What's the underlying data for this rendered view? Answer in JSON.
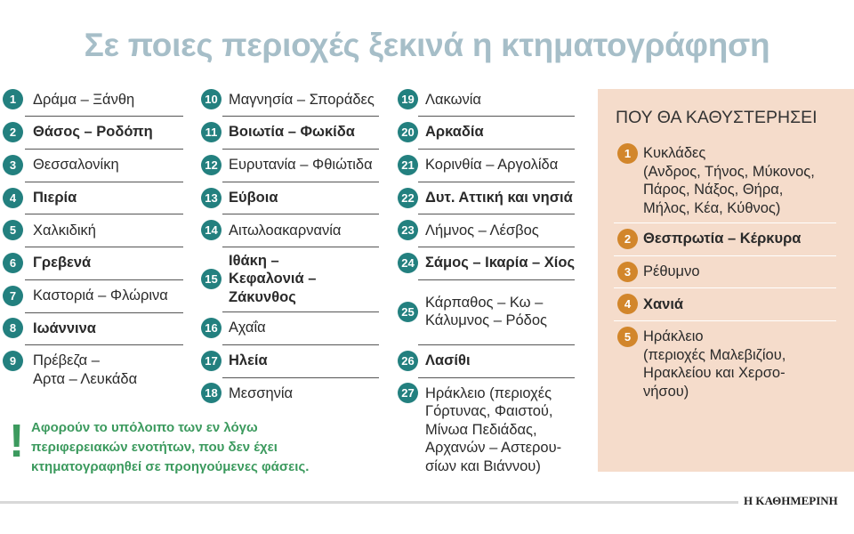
{
  "title": "Σε ποιες περιοχές ξεκινά η κτηματογράφηση",
  "columns": [
    {
      "items": [
        {
          "number": 1,
          "lines": [
            "Δράμα – Ξάνθη"
          ],
          "bold": false
        },
        {
          "number": 2,
          "lines": [
            "Θάσος – Ροδόπη"
          ],
          "bold": true
        },
        {
          "number": 3,
          "lines": [
            "Θεσσαλονίκη"
          ],
          "bold": false
        },
        {
          "number": 4,
          "lines": [
            "Πιερία"
          ],
          "bold": true
        },
        {
          "number": 5,
          "lines": [
            "Χαλκιδική"
          ],
          "bold": false
        },
        {
          "number": 6,
          "lines": [
            "Γρεβενά"
          ],
          "bold": true
        },
        {
          "number": 7,
          "lines": [
            "Καστοριά – Φλώρινα"
          ],
          "bold": false
        },
        {
          "number": 8,
          "lines": [
            "Ιωάννινα"
          ],
          "bold": true
        },
        {
          "number": 9,
          "lines": [
            "Πρέβεζα –",
            "Αρτα – Λευκάδα"
          ],
          "bold": false
        }
      ]
    },
    {
      "items": [
        {
          "number": 10,
          "lines": [
            "Μαγνησία – Σποράδες"
          ],
          "bold": false
        },
        {
          "number": 11,
          "lines": [
            "Βοιωτία – Φωκίδα"
          ],
          "bold": true
        },
        {
          "number": 12,
          "lines": [
            "Ευρυτανία – Φθιώτιδα"
          ],
          "bold": false
        },
        {
          "number": 13,
          "lines": [
            "Εύβοια"
          ],
          "bold": true
        },
        {
          "number": 14,
          "lines": [
            "Αιτωλοακαρνανία"
          ],
          "bold": false
        },
        {
          "number": 15,
          "lines": [
            "Ιθάκη –",
            "Κεφαλονιά –",
            "Ζάκυνθος"
          ],
          "bold": true
        },
        {
          "number": 16,
          "lines": [
            "Αχαΐα"
          ],
          "bold": false
        },
        {
          "number": 17,
          "lines": [
            "Ηλεία"
          ],
          "bold": true
        },
        {
          "number": 18,
          "lines": [
            "Μεσσηνία"
          ],
          "bold": false
        }
      ]
    },
    {
      "items": [
        {
          "number": 19,
          "lines": [
            "Λακωνία"
          ],
          "bold": false
        },
        {
          "number": 20,
          "lines": [
            "Αρκαδία"
          ],
          "bold": true
        },
        {
          "number": 21,
          "lines": [
            "Κορινθία – Αργολίδα"
          ],
          "bold": false
        },
        {
          "number": 22,
          "lines": [
            "Δυτ. Αττική και νησιά"
          ],
          "bold": true
        },
        {
          "number": 23,
          "lines": [
            "Λήμνος – Λέσβος"
          ],
          "bold": false
        },
        {
          "number": 24,
          "lines": [
            "Σάμος – Ικαρία – Χίος"
          ],
          "bold": true
        },
        {
          "number": 25,
          "lines": [
            "Κάρπαθος – Κω –",
            "Κάλυμνος – Ρόδος"
          ],
          "bold": false
        },
        {
          "number": 26,
          "lines": [
            "Λασίθι"
          ],
          "bold": true
        },
        {
          "number": 27,
          "lines": [
            "Ηράκλειο (περιοχές",
            "Γόρτυνας, Φαιστού,",
            "Μίνωα Πεδιάδας,",
            "Αρχανών – Αστερου-",
            "σίων και Βιάννου)"
          ],
          "bold": false
        }
      ]
    }
  ],
  "delays": {
    "title": "ΠΟΥ ΘΑ ΚΑΘΥΣΤΕΡΗΣΕΙ",
    "items": [
      {
        "number": 1,
        "lines": [
          "Κυκλάδες",
          "(Ανδρος, Τήνος, Μύκονος,",
          "Πάρος, Νάξος, Θήρα,",
          "Μήλος, Κέα, Κύθνος)"
        ],
        "bold": false
      },
      {
        "number": 2,
        "lines": [
          "Θεσπρωτία – Κέρκυρα"
        ],
        "bold": true
      },
      {
        "number": 3,
        "lines": [
          "Ρέθυμνο"
        ],
        "bold": false
      },
      {
        "number": 4,
        "lines": [
          "Χανιά"
        ],
        "bold": true
      },
      {
        "number": 5,
        "lines": [
          "Ηράκλειο",
          "(περιοχές Μαλεβιζίου,",
          "Ηρακλείου και Χερσο-",
          "νήσου)"
        ],
        "bold": false
      }
    ]
  },
  "note": {
    "mark": "!",
    "lines": [
      "Αφορούν το υπόλοιπο των εν λόγω",
      "περιφερειακών ενοτήτων, που δεν έχει",
      "κτηματογραφηθεί σε προηγούμενες φάσεις."
    ]
  },
  "logo": "Η ΚΑΘΗΜΕΡΙΝΗ"
}
